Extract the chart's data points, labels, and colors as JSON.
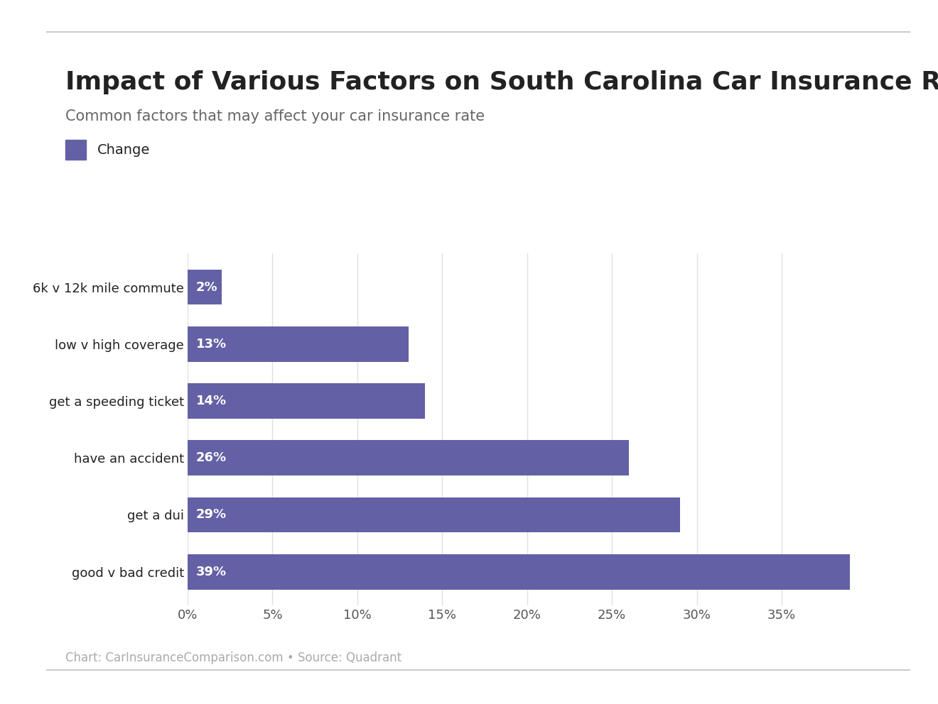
{
  "title": "Impact of Various Factors on South Carolina Car Insurance Rates",
  "subtitle": "Common factors that may affect your car insurance rate",
  "legend_label": "Change",
  "categories": [
    "6k v 12k mile commute",
    "low v high coverage",
    "get a speeding ticket",
    "have an accident",
    "get a dui",
    "good v bad credit"
  ],
  "values": [
    2,
    13,
    14,
    26,
    29,
    39
  ],
  "bar_color": "#6360a5",
  "bar_label_color": "#ffffff",
  "background_color": "#ffffff",
  "title_color": "#222222",
  "subtitle_color": "#666666",
  "xlim": [
    0,
    42
  ],
  "grid_color": "#e0e0e0",
  "footer_text": "Chart: CarInsuranceComparison.com • Source: Quadrant",
  "footer_color": "#aaaaaa",
  "title_fontsize": 26,
  "subtitle_fontsize": 15,
  "bar_label_fontsize": 13,
  "tick_fontsize": 13,
  "ytick_fontsize": 13,
  "legend_fontsize": 14,
  "footer_fontsize": 12,
  "bar_height": 0.62,
  "separator_color": "#cccccc"
}
